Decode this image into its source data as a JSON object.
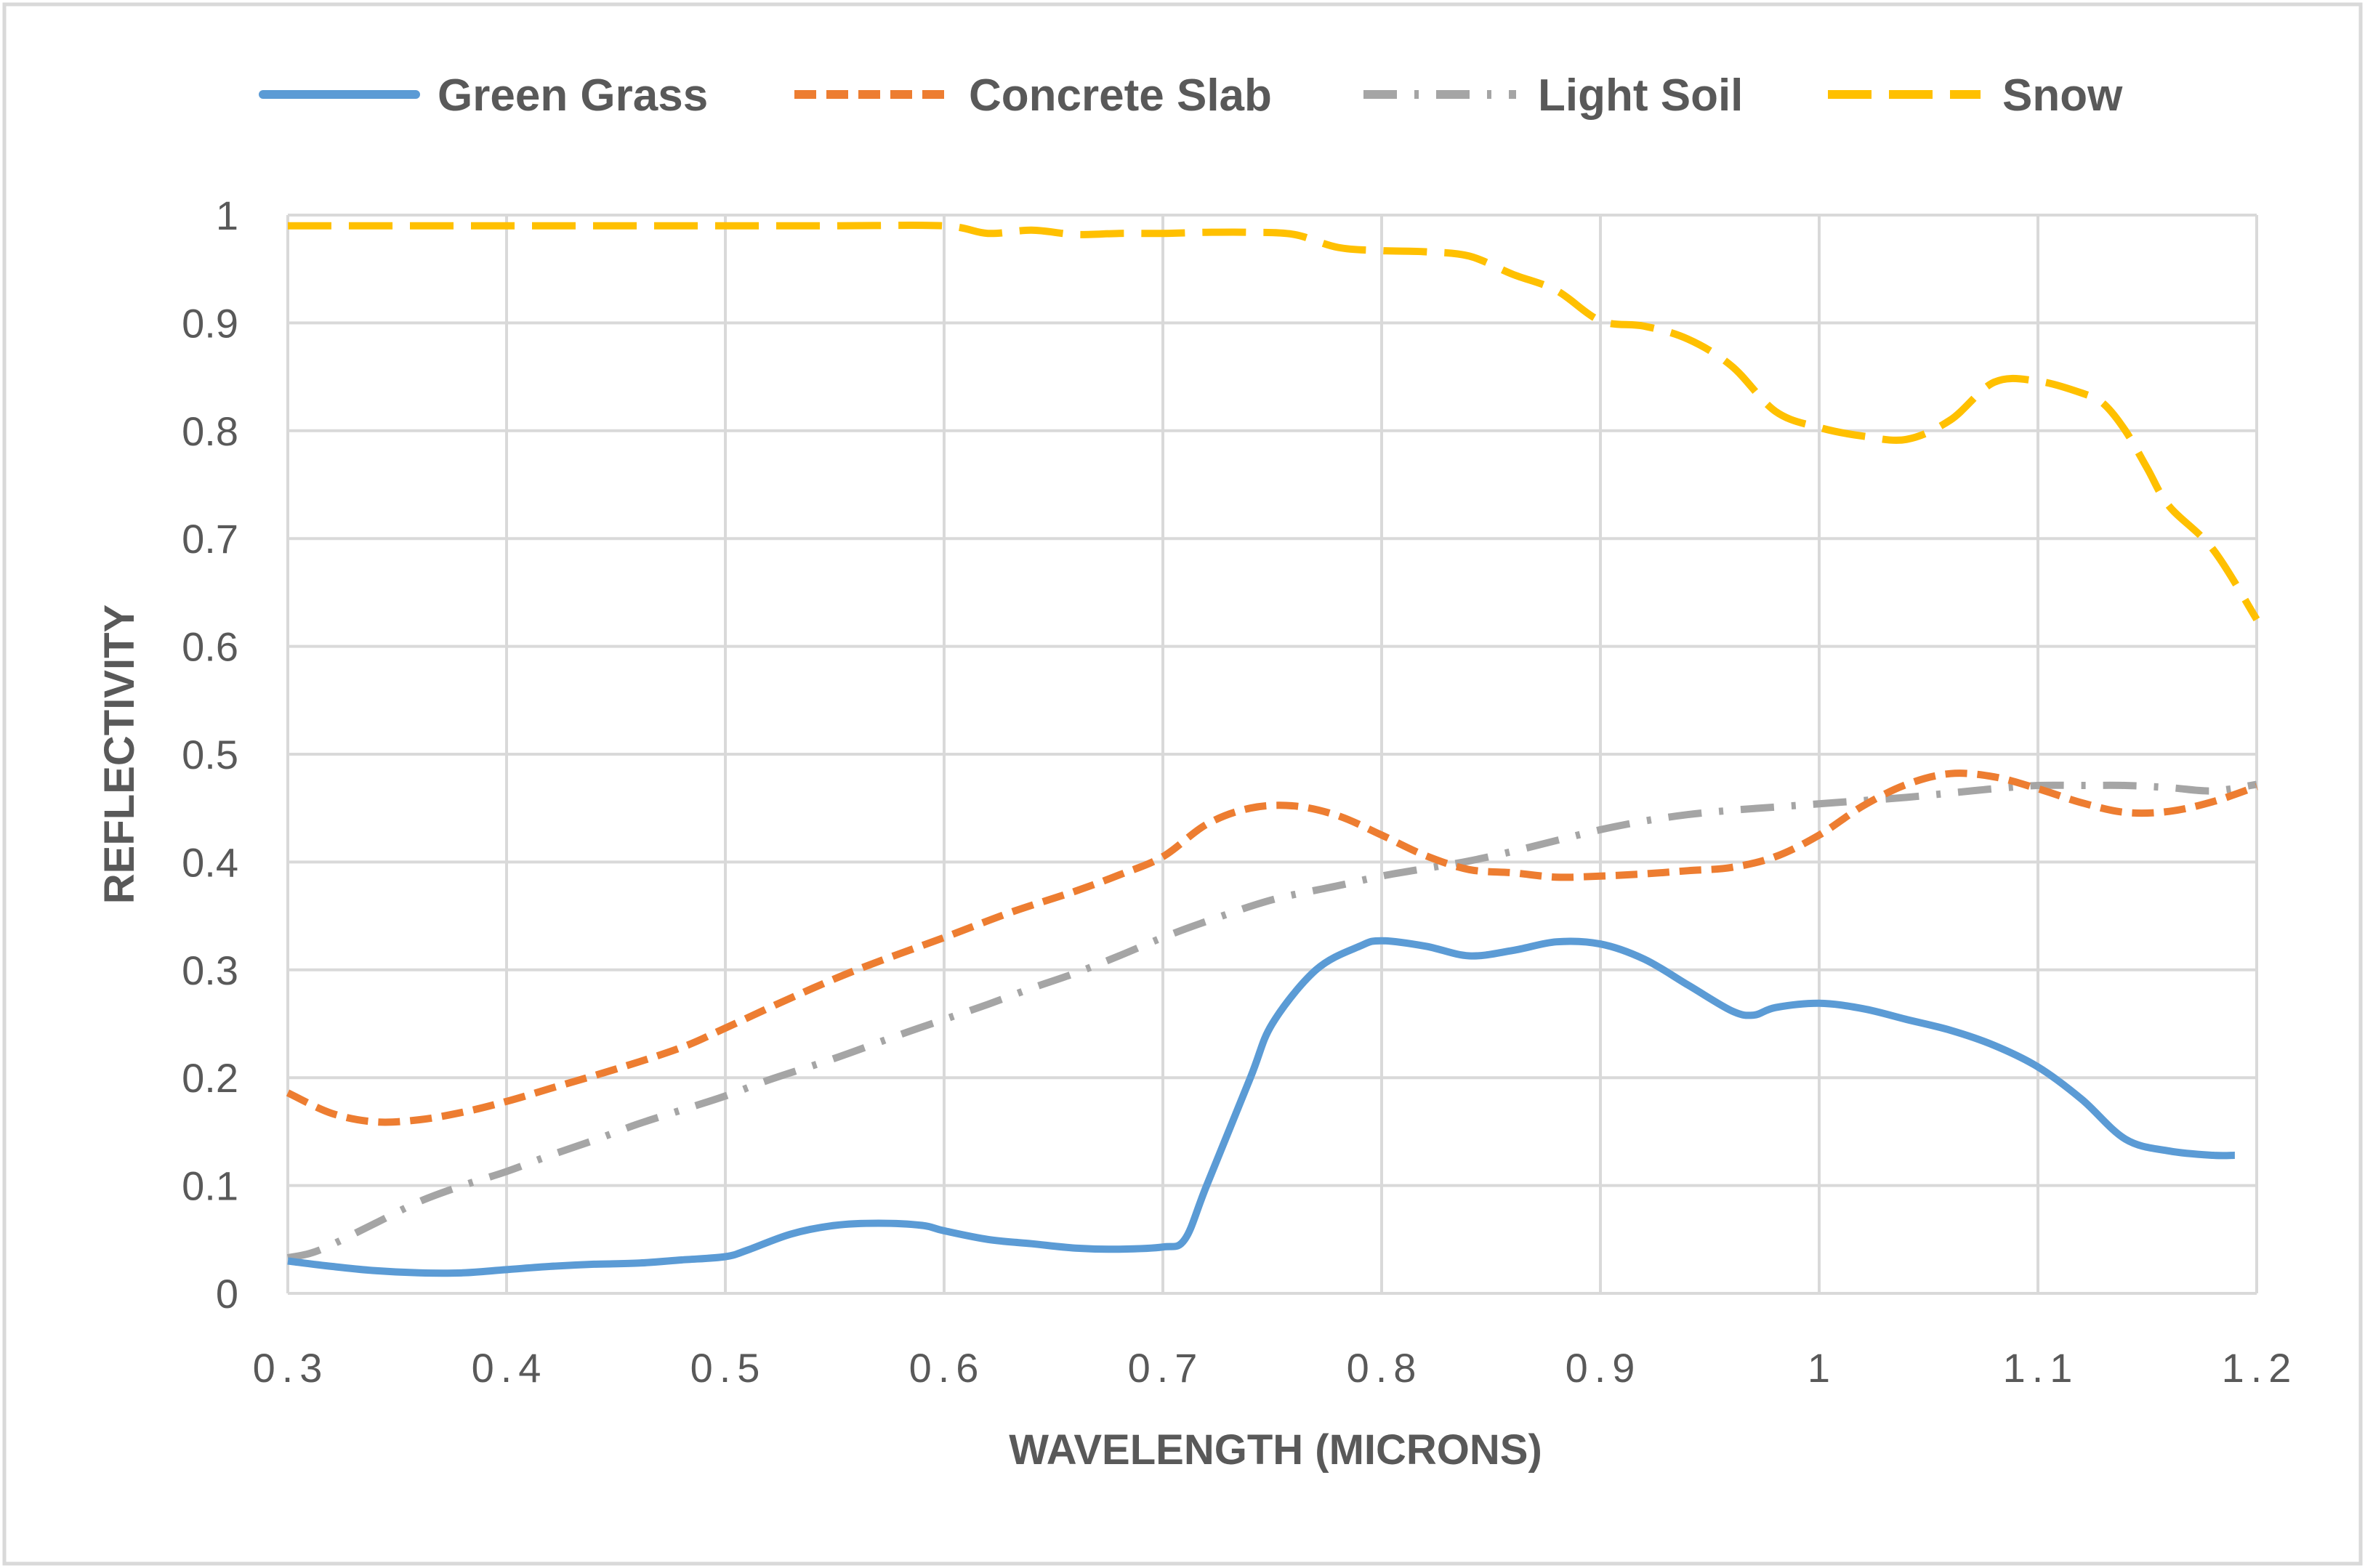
{
  "chart_data": {
    "type": "line",
    "title": "",
    "xlabel": "WAVELENGTH (MICRONS)",
    "ylabel": "REFLECTIVITY",
    "xlim": [
      0.3,
      1.2
    ],
    "ylim": [
      0,
      1
    ],
    "grid": true,
    "legend_position": "top",
    "x_ticks": [
      0.3,
      0.4,
      0.5,
      0.6,
      0.7,
      0.8,
      0.9,
      1.0,
      1.1,
      1.2
    ],
    "x_tick_labels": [
      "0.3",
      "0.4",
      "0.5",
      "0.6",
      "0.7",
      "0.8",
      "0.9",
      "1",
      "1.1",
      "1.2"
    ],
    "y_ticks": [
      0,
      0.1,
      0.2,
      0.3,
      0.4,
      0.5,
      0.6,
      0.7,
      0.8,
      0.9,
      1
    ],
    "y_tick_labels": [
      "0",
      "0.1",
      "0.2",
      "0.3",
      "0.4",
      "0.5",
      "0.6",
      "0.7",
      "0.8",
      "0.9",
      "1"
    ],
    "series": [
      {
        "name": "Green Grass",
        "color": "#5b9bd5",
        "dash": "solid",
        "x": [
          0.3,
          0.32,
          0.34,
          0.36,
          0.38,
          0.4,
          0.42,
          0.44,
          0.46,
          0.48,
          0.5,
          0.51,
          0.53,
          0.55,
          0.57,
          0.59,
          0.6,
          0.62,
          0.64,
          0.66,
          0.68,
          0.7,
          0.71,
          0.72,
          0.74,
          0.75,
          0.77,
          0.79,
          0.8,
          0.82,
          0.84,
          0.86,
          0.88,
          0.9,
          0.92,
          0.94,
          0.96,
          0.97,
          0.98,
          1.0,
          1.02,
          1.04,
          1.06,
          1.08,
          1.1,
          1.12,
          1.14,
          1.16,
          1.18,
          1.19
        ],
        "y": [
          0.03,
          0.025,
          0.021,
          0.019,
          0.019,
          0.022,
          0.025,
          0.027,
          0.028,
          0.031,
          0.034,
          0.04,
          0.055,
          0.063,
          0.065,
          0.063,
          0.058,
          0.05,
          0.046,
          0.042,
          0.041,
          0.043,
          0.05,
          0.1,
          0.2,
          0.25,
          0.3,
          0.322,
          0.327,
          0.322,
          0.313,
          0.318,
          0.326,
          0.324,
          0.31,
          0.286,
          0.262,
          0.258,
          0.265,
          0.269,
          0.264,
          0.254,
          0.244,
          0.23,
          0.21,
          0.18,
          0.143,
          0.132,
          0.128,
          0.128
        ]
      },
      {
        "name": "Concrete Slab",
        "color": "#ed7d31",
        "dash": "dash",
        "x": [
          0.3,
          0.32,
          0.34,
          0.36,
          0.38,
          0.4,
          0.42,
          0.45,
          0.48,
          0.5,
          0.53,
          0.56,
          0.6,
          0.63,
          0.66,
          0.68,
          0.7,
          0.72,
          0.74,
          0.76,
          0.78,
          0.8,
          0.82,
          0.84,
          0.86,
          0.88,
          0.9,
          0.92,
          0.94,
          0.96,
          0.98,
          1.0,
          1.02,
          1.04,
          1.06,
          1.08,
          1.1,
          1.12,
          1.14,
          1.16,
          1.18,
          1.2
        ],
        "y": [
          0.186,
          0.167,
          0.159,
          0.161,
          0.168,
          0.178,
          0.19,
          0.208,
          0.228,
          0.246,
          0.274,
          0.3,
          0.33,
          0.353,
          0.373,
          0.388,
          0.405,
          0.435,
          0.45,
          0.452,
          0.443,
          0.425,
          0.406,
          0.393,
          0.39,
          0.386,
          0.387,
          0.389,
          0.392,
          0.395,
          0.405,
          0.425,
          0.452,
          0.472,
          0.482,
          0.479,
          0.468,
          0.455,
          0.446,
          0.447,
          0.456,
          0.47
        ]
      },
      {
        "name": "Light Soil",
        "color": "#a5a5a5",
        "dash": "dashdot",
        "x": [
          0.3,
          0.31,
          0.32,
          0.34,
          0.36,
          0.38,
          0.4,
          0.42,
          0.44,
          0.46,
          0.48,
          0.5,
          0.52,
          0.55,
          0.58,
          0.6,
          0.62,
          0.64,
          0.66,
          0.68,
          0.7,
          0.72,
          0.75,
          0.78,
          0.8,
          0.82,
          0.84,
          0.86,
          0.88,
          0.9,
          0.92,
          0.94,
          0.96,
          0.98,
          1.0,
          1.02,
          1.04,
          1.06,
          1.08,
          1.1,
          1.12,
          1.14,
          1.16,
          1.18,
          1.2
        ],
        "y": [
          0.033,
          0.037,
          0.045,
          0.065,
          0.085,
          0.1,
          0.113,
          0.128,
          0.142,
          0.157,
          0.17,
          0.183,
          0.198,
          0.218,
          0.24,
          0.254,
          0.268,
          0.283,
          0.297,
          0.313,
          0.33,
          0.345,
          0.365,
          0.378,
          0.387,
          0.394,
          0.401,
          0.41,
          0.42,
          0.43,
          0.438,
          0.444,
          0.448,
          0.451,
          0.454,
          0.457,
          0.46,
          0.464,
          0.468,
          0.471,
          0.471,
          0.471,
          0.469,
          0.466,
          0.472
        ]
      },
      {
        "name": "Snow",
        "color": "#ffc000",
        "dash": "longdash",
        "x": [
          0.3,
          0.35,
          0.4,
          0.45,
          0.5,
          0.55,
          0.6,
          0.62,
          0.64,
          0.66,
          0.68,
          0.7,
          0.72,
          0.74,
          0.76,
          0.78,
          0.8,
          0.82,
          0.84,
          0.86,
          0.88,
          0.9,
          0.92,
          0.94,
          0.96,
          0.98,
          1.0,
          1.02,
          1.04,
          1.06,
          1.08,
          1.1,
          1.12,
          1.13,
          1.14,
          1.15,
          1.16,
          1.18,
          1.2
        ],
        "y": [
          0.99,
          0.99,
          0.99,
          0.99,
          0.99,
          0.99,
          0.99,
          0.983,
          0.986,
          0.982,
          0.983,
          0.983,
          0.984,
          0.984,
          0.982,
          0.97,
          0.967,
          0.966,
          0.962,
          0.945,
          0.93,
          0.902,
          0.897,
          0.885,
          0.86,
          0.818,
          0.803,
          0.795,
          0.792,
          0.81,
          0.845,
          0.846,
          0.835,
          0.825,
          0.8,
          0.765,
          0.73,
          0.69,
          0.625
        ]
      }
    ]
  }
}
